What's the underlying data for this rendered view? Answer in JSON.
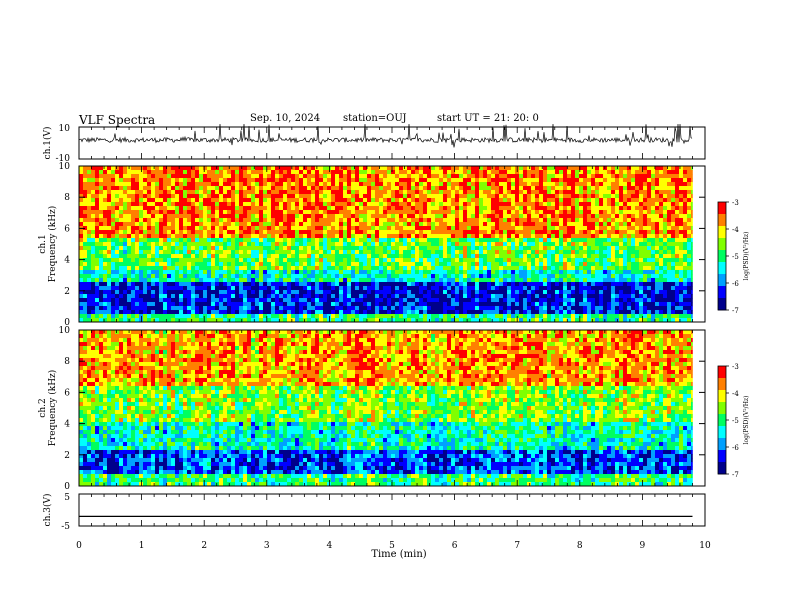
{
  "header": {
    "title": "VLF Spectra",
    "date": "Sep. 10, 2024",
    "station": "station=OUJ",
    "start": "start  UT  =   21: 20: 0"
  },
  "chart_data": [
    {
      "type": "line",
      "name_label": "ch.1(V)",
      "ylim": [
        -10,
        10
      ],
      "yticks": [
        "10",
        "-10"
      ],
      "xlim": [
        0,
        10
      ],
      "description_values": "noisy waveform around ~0 V with spikes"
    },
    {
      "type": "heatmap",
      "ylabel": "ch.1\nFrequency (kHz)",
      "ylabel_top": "ch.1",
      "ylabel_bottom": "Frequency (kHz)",
      "ylim": [
        0,
        10
      ],
      "yticks": [
        "0",
        "2",
        "4",
        "6",
        "8",
        "10"
      ],
      "xlim": [
        0,
        9.8
      ],
      "colorbar": {
        "min": -7,
        "max": -3,
        "ticks": [
          "-3",
          "-4",
          "-5",
          "-6",
          "-7"
        ],
        "label": "log(PSD)(V²/Hz)"
      },
      "bands": [
        {
          "from_khz": 0.0,
          "to_khz": 0.5,
          "level": -5.0
        },
        {
          "from_khz": 0.5,
          "to_khz": 2.5,
          "level": -6.4
        },
        {
          "from_khz": 2.5,
          "to_khz": 3.3,
          "level": -5.3
        },
        {
          "from_khz": 3.3,
          "to_khz": 5.5,
          "level": -4.7
        },
        {
          "from_khz": 5.5,
          "to_khz": 10.0,
          "level": -3.7
        }
      ]
    },
    {
      "type": "heatmap",
      "ylabel_top": "ch.2",
      "ylabel_bottom": "Frequency (kHz)",
      "ylim": [
        0,
        10
      ],
      "yticks": [
        "0",
        "2",
        "4",
        "6",
        "8",
        "10"
      ],
      "xlim": [
        0,
        9.8
      ],
      "colorbar": {
        "min": -7,
        "max": -3,
        "ticks": [
          "-3",
          "-4",
          "-5",
          "-6",
          "-7"
        ],
        "label": "log(PSD)(V²/Hz)"
      },
      "bands": [
        {
          "from_khz": 0.0,
          "to_khz": 0.8,
          "level": -5.0
        },
        {
          "from_khz": 0.8,
          "to_khz": 2.3,
          "level": -6.2
        },
        {
          "from_khz": 2.3,
          "to_khz": 4.0,
          "level": -5.3
        },
        {
          "from_khz": 4.0,
          "to_khz": 6.5,
          "level": -4.6
        },
        {
          "from_khz": 6.5,
          "to_khz": 10.0,
          "level": -3.8
        }
      ]
    },
    {
      "type": "line",
      "name_label": "ch.3(V)",
      "ylim": [
        -5,
        5
      ],
      "yticks": [
        "5",
        "-5"
      ],
      "x": [
        0,
        9.8
      ],
      "y": [
        -2,
        -2
      ]
    }
  ],
  "xaxis": {
    "label": "Time  (min)",
    "ticks": [
      "0",
      "1",
      "2",
      "3",
      "4",
      "5",
      "6",
      "7",
      "8",
      "9",
      "10"
    ]
  },
  "colors": {
    "axis": "#000000",
    "scale": [
      "#00008b",
      "#0000ff",
      "#00a0ff",
      "#00ffff",
      "#00ff60",
      "#80ff00",
      "#ffff00",
      "#ff8000",
      "#ff0000"
    ]
  }
}
